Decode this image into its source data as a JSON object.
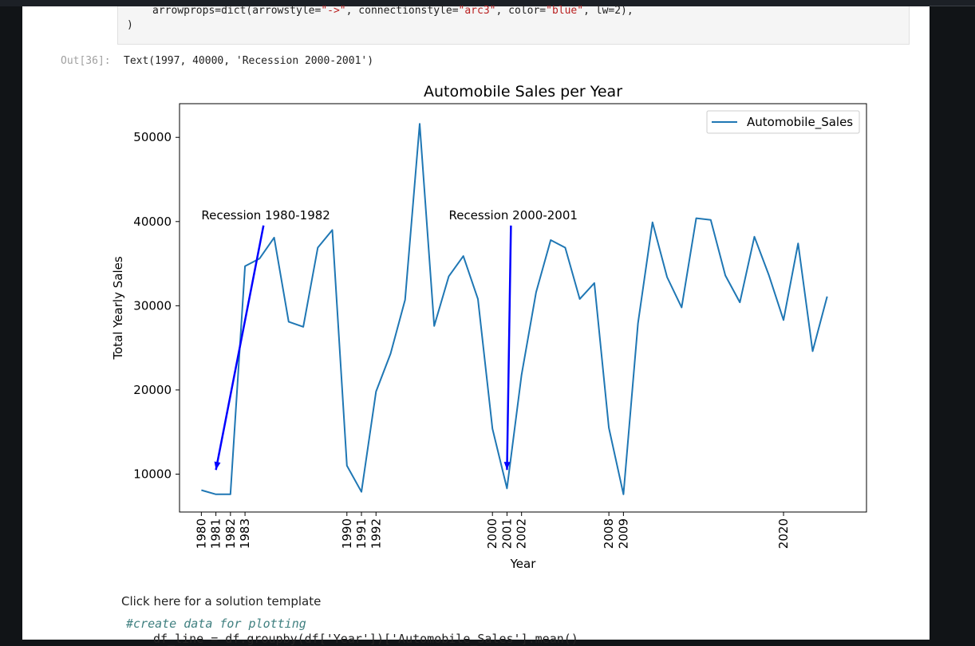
{
  "code_cell": {
    "line1_pre": "arrowprops=dict(arrowstyle=",
    "line1_s1": "\"->\"",
    "line1_mid1": ", connectionstyle=",
    "line1_s2": "\"arc3\"",
    "line1_mid2": ", color=",
    "line1_s3": "\"blue\"",
    "line1_post": ", lw=2),",
    "line2": ")"
  },
  "output": {
    "prompt": "Out[36]:",
    "text": "Text(1997, 40000, 'Recession 2000-2001')"
  },
  "chart_data": {
    "type": "line",
    "title": "Automobile Sales per Year",
    "xlabel": "Year",
    "ylabel": "Total Yearly Sales",
    "xlim": [
      1978.5,
      2025.7
    ],
    "ylim": [
      5500,
      54000
    ],
    "yticks": [
      10000,
      20000,
      30000,
      40000,
      50000
    ],
    "xticks": [
      1980,
      1981,
      1982,
      1983,
      1990,
      1991,
      1992,
      2000,
      2001,
      2002,
      2008,
      2009,
      2020
    ],
    "legend": {
      "placement": "upper-right",
      "entries": [
        "Automobile_Sales"
      ]
    },
    "grid": false,
    "series": [
      {
        "name": "Automobile_Sales",
        "color": "#1f77b4",
        "x": [
          1980,
          1981,
          1982,
          1983,
          1984,
          1985,
          1986,
          1987,
          1988,
          1989,
          1990,
          1991,
          1992,
          1993,
          1994,
          1995,
          1996,
          1997,
          1998,
          1999,
          2000,
          2001,
          2002,
          2003,
          2004,
          2005,
          2006,
          2007,
          2008,
          2009,
          2010,
          2011,
          2012,
          2013,
          2014,
          2015,
          2016,
          2017,
          2018,
          2019,
          2020,
          2021,
          2022,
          2023
        ],
        "values": [
          8100,
          7600,
          7600,
          34700,
          35600,
          38100,
          28100,
          27500,
          36900,
          39000,
          11000,
          7900,
          19800,
          24300,
          30700,
          51600,
          27600,
          33500,
          35900,
          30800,
          15400,
          8300,
          21800,
          31600,
          37800,
          36900,
          30800,
          32700,
          15500,
          7600,
          27900,
          39900,
          33400,
          29800,
          40400,
          40200,
          33600,
          30400,
          38200,
          33600,
          28300,
          37400,
          24600,
          31100
        ]
      }
    ],
    "annotations": [
      {
        "text": "Recession 1980-1982",
        "text_x": 1980,
        "text_y": 40000,
        "arrow_tip_x": 1981,
        "arrow_tip_y": 10500,
        "arrow_color": "#0000ff"
      },
      {
        "text": "Recession 2000-2001",
        "text_x": 1997,
        "text_y": 40000,
        "arrow_tip_x": 2001,
        "arrow_tip_y": 10500,
        "arrow_color": "#0000ff"
      }
    ]
  },
  "solution": {
    "link_label": "Click here for a solution template",
    "comment": "#create data for plotting",
    "code_line": "df_line = df.groupby(df['Year'])['Automobile_Sales'].mean()"
  }
}
